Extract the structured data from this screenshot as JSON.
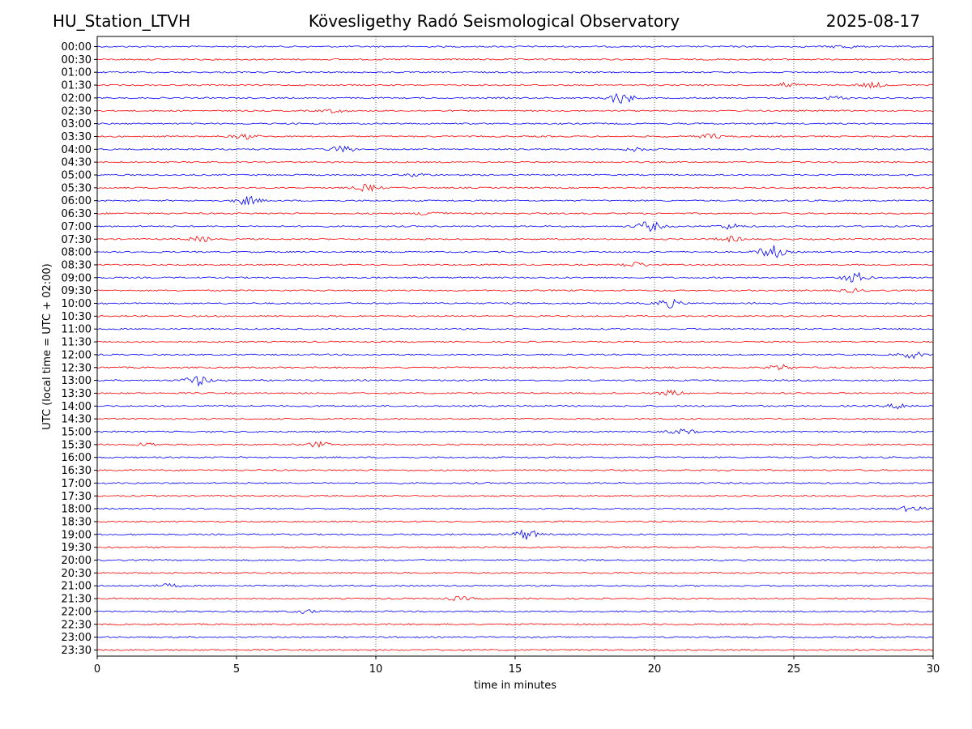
{
  "header": {
    "station": "HU_Station_LTVH",
    "observatory": "Kövesligethy Radó Seismological Observatory",
    "date": "2025-08-17"
  },
  "chart_data": {
    "type": "line",
    "ylabel": "UTC (local time = UTC + 02:00)",
    "xlabel": "time in minutes",
    "xlim": [
      0,
      30
    ],
    "x_ticks": [
      0,
      5,
      10,
      15,
      20,
      25,
      30
    ],
    "grid": "vertical dotted at every 5 minutes",
    "colors": {
      "even_trace": "#0000ff",
      "odd_trace": "#ff0000"
    },
    "rows": [
      "00:00",
      "00:30",
      "01:00",
      "01:30",
      "02:00",
      "02:30",
      "03:00",
      "03:30",
      "04:00",
      "04:30",
      "05:00",
      "05:30",
      "06:00",
      "06:30",
      "07:00",
      "07:30",
      "08:00",
      "08:30",
      "09:00",
      "09:30",
      "10:00",
      "10:30",
      "11:00",
      "11:30",
      "12:00",
      "12:30",
      "13:00",
      "13:30",
      "14:00",
      "14:30",
      "15:00",
      "15:30",
      "16:00",
      "16:30",
      "17:00",
      "17:30",
      "18:00",
      "18:30",
      "19:00",
      "19:30",
      "20:00",
      "20:30",
      "21:00",
      "21:30",
      "22:00",
      "22:30",
      "23:00",
      "23:30"
    ],
    "events": [
      {
        "row": 0,
        "minute": 26.8,
        "amp": 2
      },
      {
        "row": 3,
        "minute": 24.8,
        "amp": 3
      },
      {
        "row": 3,
        "minute": 27.8,
        "amp": 3
      },
      {
        "row": 4,
        "minute": 18.8,
        "amp": 7
      },
      {
        "row": 4,
        "minute": 26.5,
        "amp": 2
      },
      {
        "row": 5,
        "minute": 8.5,
        "amp": 2
      },
      {
        "row": 7,
        "minute": 5.3,
        "amp": 3
      },
      {
        "row": 7,
        "minute": 22.0,
        "amp": 3
      },
      {
        "row": 8,
        "minute": 8.8,
        "amp": 4
      },
      {
        "row": 8,
        "minute": 19.3,
        "amp": 2
      },
      {
        "row": 10,
        "minute": 11.5,
        "amp": 2
      },
      {
        "row": 11,
        "minute": 9.7,
        "amp": 4
      },
      {
        "row": 12,
        "minute": 5.4,
        "amp": 5
      },
      {
        "row": 13,
        "minute": 12.0,
        "amp": 3
      },
      {
        "row": 14,
        "minute": 19.8,
        "amp": 6
      },
      {
        "row": 14,
        "minute": 22.7,
        "amp": 3
      },
      {
        "row": 15,
        "minute": 3.7,
        "amp": 3
      },
      {
        "row": 15,
        "minute": 22.7,
        "amp": 3
      },
      {
        "row": 16,
        "minute": 24.2,
        "amp": 8
      },
      {
        "row": 17,
        "minute": 19.3,
        "amp": 3
      },
      {
        "row": 18,
        "minute": 27.2,
        "amp": 6
      },
      {
        "row": 19,
        "minute": 27.1,
        "amp": 2
      },
      {
        "row": 20,
        "minute": 20.5,
        "amp": 5
      },
      {
        "row": 24,
        "minute": 29.2,
        "amp": 4
      },
      {
        "row": 25,
        "minute": 24.5,
        "amp": 3
      },
      {
        "row": 26,
        "minute": 3.6,
        "amp": 6
      },
      {
        "row": 27,
        "minute": 20.6,
        "amp": 3
      },
      {
        "row": 28,
        "minute": 28.8,
        "amp": 3
      },
      {
        "row": 30,
        "minute": 21.0,
        "amp": 3
      },
      {
        "row": 31,
        "minute": 7.9,
        "amp": 3
      },
      {
        "row": 31,
        "minute": 1.8,
        "amp": 2
      },
      {
        "row": 36,
        "minute": 29.2,
        "amp": 3
      },
      {
        "row": 38,
        "minute": 15.4,
        "amp": 6
      },
      {
        "row": 42,
        "minute": 2.6,
        "amp": 2
      },
      {
        "row": 43,
        "minute": 13.0,
        "amp": 2
      },
      {
        "row": 44,
        "minute": 7.5,
        "amp": 2
      }
    ]
  }
}
